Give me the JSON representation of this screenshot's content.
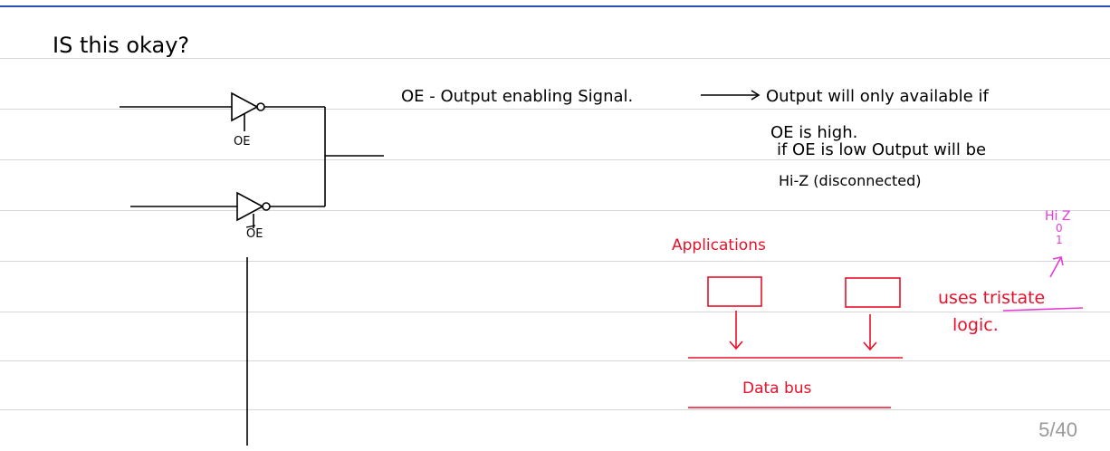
{
  "question": "IS this okay?",
  "gate_labels": {
    "top": "OE",
    "bottom": "OE"
  },
  "notes": {
    "line1_left": "OE - Output enabling Signal.",
    "line1_right": "Output will only available if",
    "line2": "OE is high.",
    "line3": "if OE is low Output will be",
    "line4": "Hi-Z (disconnected)"
  },
  "applications": {
    "heading": "Applications",
    "bus_label": "Data bus",
    "side_note_line1": "uses tristate",
    "side_note_line2": "logic.",
    "hiz_top": "Hi Z",
    "hiz_mid": "0",
    "hiz_bot": "1"
  },
  "page_indicator": "5/40",
  "colors": {
    "ink": "#000000",
    "red": "#e8102a",
    "pink": "#e63bd6",
    "rule": "#d7d7d7",
    "accent": "#2a4fb5"
  }
}
